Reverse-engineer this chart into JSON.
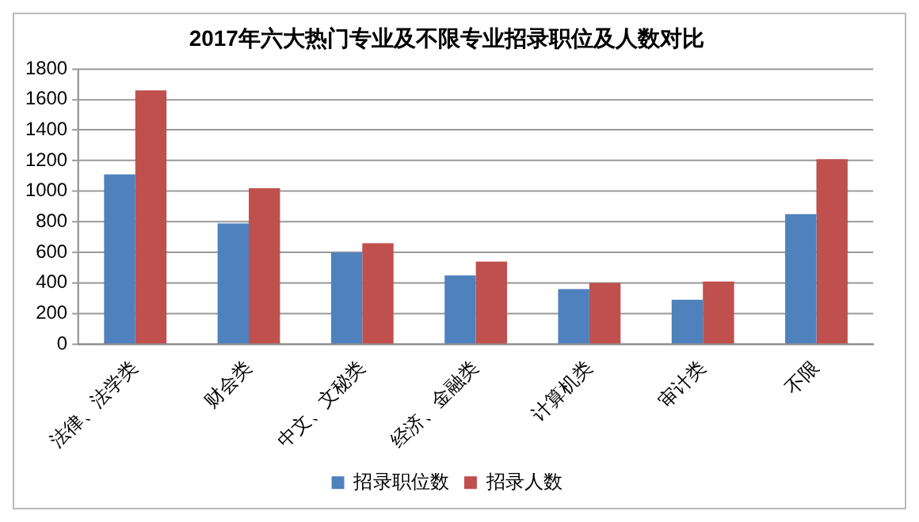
{
  "chart_data": {
    "type": "bar",
    "title": "2017年六大热门专业及不限专业招录职位及人数对比",
    "categories": [
      "法律、法学类",
      "财会类",
      "中文、文秘类",
      "经济、金融类",
      "计算机类",
      "审计类",
      "不限"
    ],
    "series": [
      {
        "name": "招录职位数",
        "color": "#4f81bd",
        "values": [
          1110,
          790,
          600,
          450,
          360,
          290,
          850
        ]
      },
      {
        "name": "招录人数",
        "color": "#c0504d",
        "values": [
          1660,
          1020,
          660,
          540,
          400,
          410,
          1210
        ]
      }
    ],
    "ylim": [
      0,
      1800
    ],
    "yticks": [
      0,
      200,
      400,
      600,
      800,
      1000,
      1200,
      1400,
      1600,
      1800
    ],
    "grid": "y",
    "legend": "bottom"
  }
}
